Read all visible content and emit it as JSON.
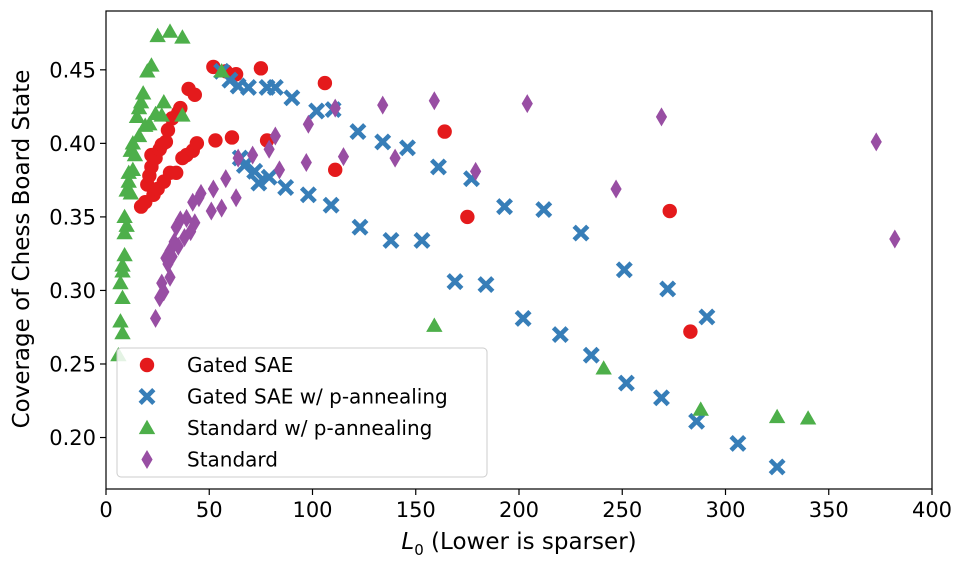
{
  "chart_data": {
    "type": "scatter",
    "title": "",
    "xlabel_main": "L",
    "xlabel_sub": "0",
    "xlabel_rest": " (Lower is sparser)",
    "ylabel": "Coverage of Chess Board State",
    "xlim": [
      0,
      400
    ],
    "ylim": [
      0.165,
      0.49
    ],
    "xticks": [
      0,
      50,
      100,
      150,
      200,
      250,
      300,
      350,
      400
    ],
    "yticks": [
      0.2,
      0.25,
      0.3,
      0.35,
      0.4,
      0.45
    ],
    "xtick_labels": [
      "0",
      "50",
      "100",
      "150",
      "200",
      "250",
      "300",
      "350",
      "400"
    ],
    "ytick_labels": [
      "0.20",
      "0.25",
      "0.30",
      "0.35",
      "0.40",
      "0.45"
    ],
    "grid": false,
    "legend_position": "lower-left",
    "series": [
      {
        "name": "Gated SAE",
        "marker": "circle",
        "color": "#e41a1c",
        "points": [
          [
            17,
            0.357
          ],
          [
            19,
            0.36
          ],
          [
            20,
            0.372
          ],
          [
            21,
            0.378
          ],
          [
            22,
            0.384
          ],
          [
            22,
            0.392
          ],
          [
            23,
            0.365
          ],
          [
            24,
            0.39
          ],
          [
            25,
            0.369
          ],
          [
            26,
            0.396
          ],
          [
            27,
            0.399
          ],
          [
            28,
            0.374
          ],
          [
            29,
            0.401
          ],
          [
            30,
            0.409
          ],
          [
            31,
            0.38
          ],
          [
            32,
            0.417
          ],
          [
            34,
            0.38
          ],
          [
            35,
            0.421
          ],
          [
            36,
            0.424
          ],
          [
            37,
            0.39
          ],
          [
            39,
            0.392
          ],
          [
            40,
            0.437
          ],
          [
            42,
            0.395
          ],
          [
            43,
            0.433
          ],
          [
            44,
            0.4
          ],
          [
            52,
            0.452
          ],
          [
            53,
            0.402
          ],
          [
            58,
            0.449
          ],
          [
            61,
            0.404
          ],
          [
            63,
            0.447
          ],
          [
            75,
            0.451
          ],
          [
            78,
            0.402
          ],
          [
            106,
            0.441
          ],
          [
            111,
            0.382
          ],
          [
            164,
            0.408
          ],
          [
            175,
            0.35
          ],
          [
            273,
            0.354
          ],
          [
            283,
            0.272
          ]
        ]
      },
      {
        "name": "Gated SAE w/ p-annealing",
        "marker": "x",
        "color": "#377eb8",
        "points": [
          [
            56,
            0.449
          ],
          [
            60,
            0.443
          ],
          [
            64,
            0.439
          ],
          [
            65,
            0.39
          ],
          [
            67,
            0.385
          ],
          [
            69,
            0.438
          ],
          [
            72,
            0.381
          ],
          [
            74,
            0.373
          ],
          [
            78,
            0.438
          ],
          [
            79,
            0.377
          ],
          [
            82,
            0.438
          ],
          [
            87,
            0.37
          ],
          [
            90,
            0.431
          ],
          [
            98,
            0.365
          ],
          [
            102,
            0.422
          ],
          [
            109,
            0.358
          ],
          [
            110,
            0.423
          ],
          [
            122,
            0.408
          ],
          [
            123,
            0.343
          ],
          [
            134,
            0.401
          ],
          [
            138,
            0.334
          ],
          [
            146,
            0.397
          ],
          [
            153,
            0.334
          ],
          [
            161,
            0.384
          ],
          [
            169,
            0.306
          ],
          [
            177,
            0.376
          ],
          [
            184,
            0.304
          ],
          [
            193,
            0.357
          ],
          [
            202,
            0.281
          ],
          [
            212,
            0.355
          ],
          [
            220,
            0.27
          ],
          [
            230,
            0.339
          ],
          [
            235,
            0.256
          ],
          [
            251,
            0.314
          ],
          [
            252,
            0.237
          ],
          [
            269,
            0.227
          ],
          [
            272,
            0.301
          ],
          [
            286,
            0.211
          ],
          [
            291,
            0.282
          ],
          [
            306,
            0.196
          ],
          [
            325,
            0.18
          ]
        ]
      },
      {
        "name": "Standard w/ p-annealing",
        "marker": "triangle",
        "color": "#4daf4a",
        "points": [
          [
            6,
            0.256
          ],
          [
            7,
            0.279
          ],
          [
            7,
            0.305
          ],
          [
            8,
            0.271
          ],
          [
            8,
            0.295
          ],
          [
            8,
            0.313
          ],
          [
            8,
            0.317
          ],
          [
            9,
            0.324
          ],
          [
            9,
            0.339
          ],
          [
            9,
            0.35
          ],
          [
            10,
            0.344
          ],
          [
            10,
            0.368
          ],
          [
            11,
            0.374
          ],
          [
            11,
            0.38
          ],
          [
            12,
            0.366
          ],
          [
            12,
            0.395
          ],
          [
            13,
            0.4
          ],
          [
            13,
            0.382
          ],
          [
            14,
            0.392
          ],
          [
            15,
            0.418
          ],
          [
            16,
            0.405
          ],
          [
            16,
            0.424
          ],
          [
            17,
            0.428
          ],
          [
            18,
            0.434
          ],
          [
            19,
            0.412
          ],
          [
            20,
            0.449
          ],
          [
            21,
            0.413
          ],
          [
            22,
            0.453
          ],
          [
            24,
            0.42
          ],
          [
            25,
            0.473
          ],
          [
            27,
            0.419
          ],
          [
            28,
            0.428
          ],
          [
            31,
            0.476
          ],
          [
            37,
            0.419
          ],
          [
            37,
            0.472
          ],
          [
            56,
            0.449
          ],
          [
            159,
            0.276
          ],
          [
            241,
            0.247
          ],
          [
            288,
            0.219
          ],
          [
            325,
            0.214
          ],
          [
            340,
            0.213
          ]
        ]
      },
      {
        "name": "Standard",
        "marker": "diamond",
        "color": "#984ea3",
        "points": [
          [
            24,
            0.281
          ],
          [
            26,
            0.295
          ],
          [
            27,
            0.305
          ],
          [
            28,
            0.299
          ],
          [
            29,
            0.322
          ],
          [
            30,
            0.318
          ],
          [
            31,
            0.309
          ],
          [
            31,
            0.327
          ],
          [
            32,
            0.323
          ],
          [
            33,
            0.333
          ],
          [
            34,
            0.343
          ],
          [
            35,
            0.33
          ],
          [
            36,
            0.348
          ],
          [
            38,
            0.336
          ],
          [
            39,
            0.349
          ],
          [
            41,
            0.34
          ],
          [
            42,
            0.36
          ],
          [
            43,
            0.346
          ],
          [
            45,
            0.363
          ],
          [
            46,
            0.366
          ],
          [
            51,
            0.354
          ],
          [
            52,
            0.369
          ],
          [
            56,
            0.356
          ],
          [
            58,
            0.376
          ],
          [
            63,
            0.363
          ],
          [
            64,
            0.39
          ],
          [
            71,
            0.392
          ],
          [
            79,
            0.396
          ],
          [
            82,
            0.405
          ],
          [
            84,
            0.382
          ],
          [
            97,
            0.387
          ],
          [
            98,
            0.413
          ],
          [
            111,
            0.424
          ],
          [
            115,
            0.391
          ],
          [
            134,
            0.426
          ],
          [
            140,
            0.39
          ],
          [
            159,
            0.429
          ],
          [
            179,
            0.381
          ],
          [
            204,
            0.427
          ],
          [
            247,
            0.369
          ],
          [
            269,
            0.418
          ],
          [
            373,
            0.401
          ],
          [
            382,
            0.335
          ]
        ]
      }
    ]
  }
}
